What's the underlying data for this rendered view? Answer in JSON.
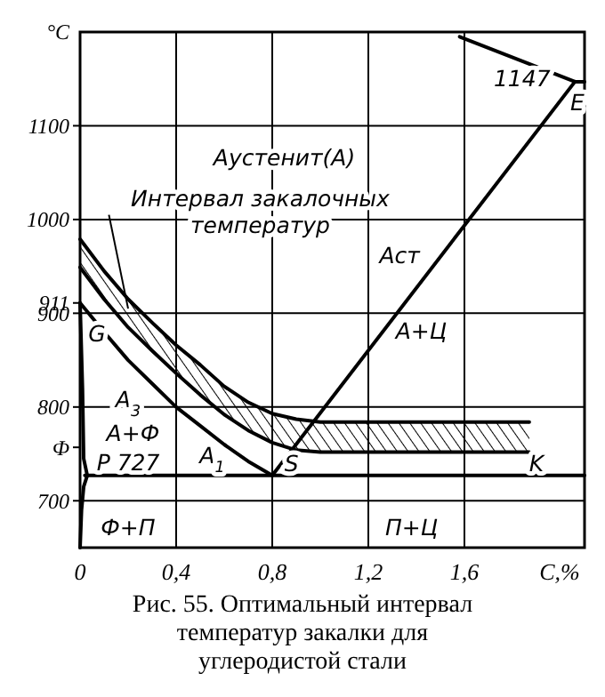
{
  "chart_data": {
    "type": "line",
    "ylabel": "°C",
    "xlabel": "C,%",
    "xlim": [
      0,
      2.1
    ],
    "ylim": [
      650,
      1200
    ],
    "xticks": [
      0,
      {
        "value": 0.4,
        "label": "0,4"
      },
      {
        "value": 0.8,
        "label": "0,8"
      },
      {
        "value": 1.2,
        "label": "1,2"
      },
      {
        "value": 1.6,
        "label": "1,6"
      }
    ],
    "yticks": [
      700,
      {
        "value": 757,
        "label": "Ф"
      },
      800,
      900,
      {
        "value": 911,
        "label": "911"
      },
      1000,
      1100
    ],
    "grid": true,
    "marker": "none",
    "line_style": "solid",
    "series": [
      {
        "color": "#000000",
        "x": [
          0,
          0.1,
          0.2,
          0.3,
          0.4,
          0.5,
          0.6,
          0.7,
          0.8,
          0.9,
          1.0,
          1.2,
          1.4,
          1.6,
          1.87
        ],
        "values": [
          979,
          945,
          915,
          890,
          866,
          845,
          822,
          805,
          793,
          787,
          784,
          784,
          784,
          784,
          784
        ]
      },
      {
        "color": "#000000",
        "x": [
          0,
          0.1,
          0.2,
          0.3,
          0.4,
          0.5,
          0.6,
          0.7,
          0.8,
          0.9,
          1.0,
          1.2,
          1.4,
          1.6,
          1.87
        ],
        "values": [
          949,
          915,
          885,
          860,
          836,
          813,
          792,
          775,
          762,
          754,
          752,
          752,
          752,
          752,
          752
        ],
        "lower": [
          949,
          915,
          885,
          860,
          836,
          813,
          792,
          775,
          762,
          754,
          752,
          752,
          752,
          752,
          752
        ],
        "upper": [
          979,
          945,
          915,
          890,
          866,
          845,
          822,
          805,
          793,
          787,
          784,
          784,
          784,
          784,
          784
        ]
      },
      {
        "color": "#000000",
        "x": [
          0,
          0.1,
          0.2,
          0.3,
          0.4,
          0.5,
          0.6,
          0.7,
          0.8
        ],
        "values": [
          911,
          880,
          850,
          825,
          800,
          780,
          760,
          742,
          727
        ]
      },
      {
        "color": "#000000",
        "x": [
          0.8,
          2.06
        ],
        "values": [
          727,
          1147
        ]
      },
      {
        "color": "#000000",
        "x": [
          1.58,
          2.06,
          2.1
        ],
        "values": [
          1195,
          1147,
          1147
        ]
      },
      {
        "color": "#000000",
        "x": [
          0.02,
          2.1
        ],
        "values": [
          727,
          727
        ]
      },
      {
        "color": "#000000",
        "x": [
          0,
          0.01,
          0.015,
          0.03
        ],
        "values": [
          911,
          820,
          745,
          727
        ]
      },
      {
        "color": "#000000",
        "x": [
          0.03,
          0.015,
          0.006,
          0
        ],
        "values": [
          727,
          715,
          690,
          650
        ]
      }
    ],
    "annotations": [
      "Аустенит(А)",
      {
        "text": "Интервал закалочных\nтемператур",
        "x": 0.2,
        "y": 905
      },
      "Аст",
      "А+Ц",
      "G",
      "A$_{3}$",
      "A+Ф",
      "P 727",
      "A$_{1}$",
      "S",
      "K",
      "1147",
      "E",
      "Ф+П",
      "П+Ц",
      "Рис. 55. Оптимальный интервал температур закалки для углеродистой стали"
    ]
  }
}
